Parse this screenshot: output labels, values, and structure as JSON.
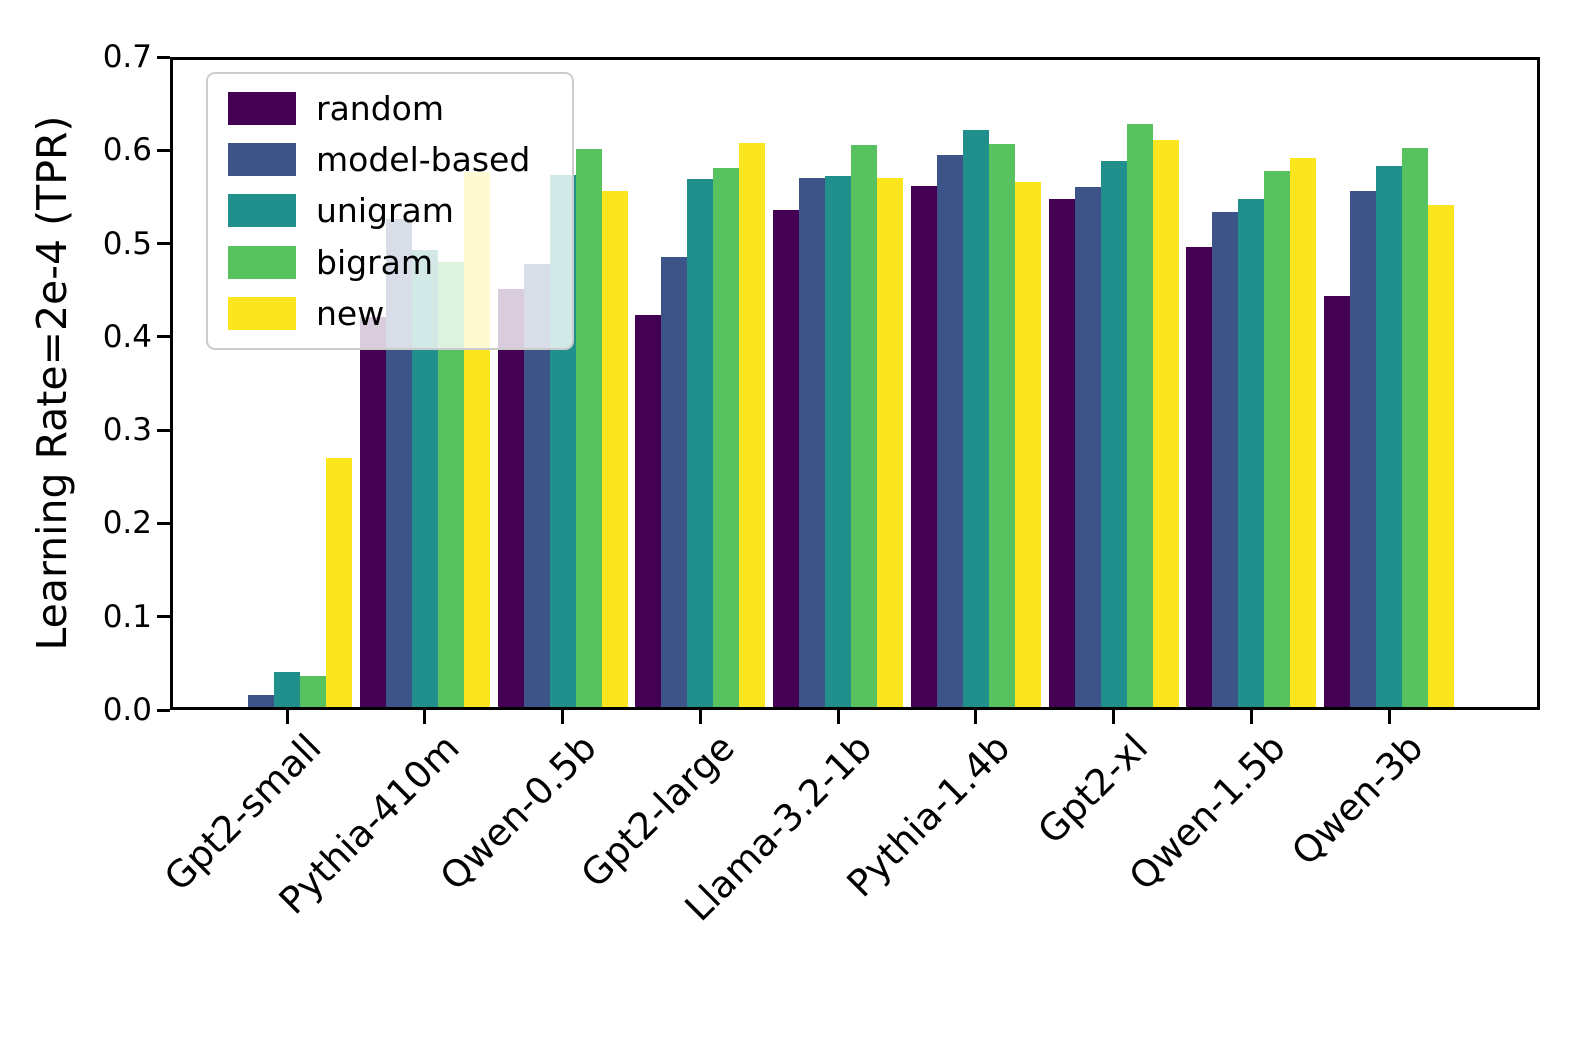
{
  "chart_data": {
    "type": "bar",
    "title": "",
    "xlabel": "",
    "ylabel": "Learning Rate=2e-4 (TPR)",
    "ylim": [
      0.0,
      0.7
    ],
    "ytick_step": 0.1,
    "yticks": [
      "0.0",
      "0.1",
      "0.2",
      "0.3",
      "0.4",
      "0.5",
      "0.6",
      "0.7"
    ],
    "grid": false,
    "legend_position": "upper left",
    "categories": [
      "Gpt2-small",
      "Pythia-410m",
      "Qwen-0.5b",
      "Gpt2-large",
      "Llama-3.2-1b",
      "Pythia-1.4b",
      "Gpt2-xl",
      "Qwen-1.5b",
      "Qwen-3b"
    ],
    "series": [
      {
        "name": "random",
        "color": "#440154",
        "values": [
          0.003,
          0.421,
          0.451,
          0.423,
          0.536,
          0.562,
          0.548,
          0.496,
          0.444
        ]
      },
      {
        "name": "model-based",
        "color": "#3d5489",
        "values": [
          0.016,
          0.526,
          0.478,
          0.486,
          0.57,
          0.595,
          0.561,
          0.534,
          0.556
        ]
      },
      {
        "name": "unigram",
        "color": "#218f8c",
        "values": [
          0.041,
          0.493,
          0.574,
          0.569,
          0.572,
          0.622,
          0.589,
          0.548,
          0.583
        ]
      },
      {
        "name": "bigram",
        "color": "#57c25f",
        "values": [
          0.036,
          0.48,
          0.601,
          0.581,
          0.606,
          0.607,
          0.628,
          0.578,
          0.602
        ]
      },
      {
        "name": "new",
        "color": "#fbe51e",
        "values": [
          0.27,
          0.577,
          0.556,
          0.608,
          0.57,
          0.566,
          0.611,
          0.592,
          0.541
        ]
      }
    ],
    "axis_color": "#000000",
    "background_color": "#ffffff"
  }
}
